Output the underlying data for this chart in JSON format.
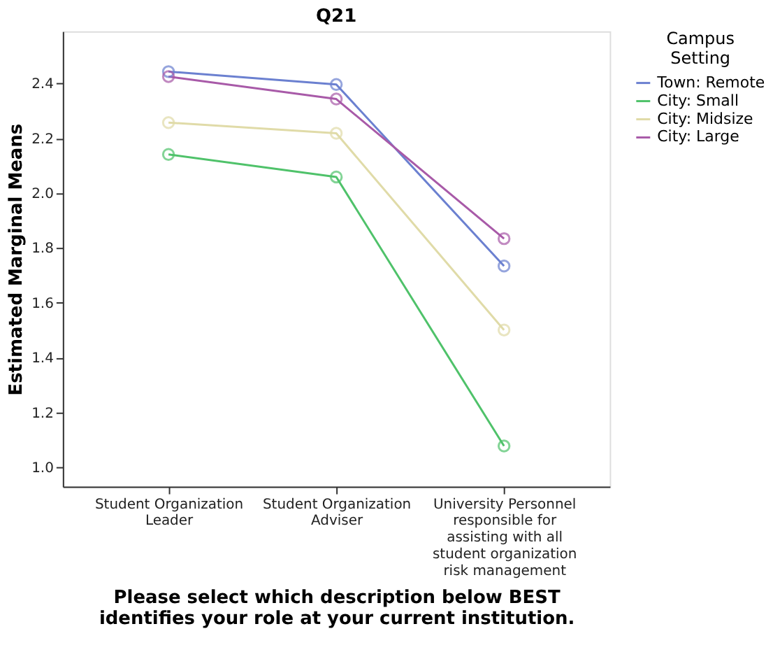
{
  "chart_data": {
    "type": "line",
    "title": "Q21",
    "xlabel": "Please select which description below BEST\nidentifies your role at your current institution.",
    "ylabel": "Estimated Marginal Means",
    "legend_title": "Campus\nSetting",
    "categories": [
      "Student Organization\nLeader",
      "Student Organization\nAdviser",
      "University Personnel\nresponsible for\nassisting with all\nstudent organization\nrisk management"
    ],
    "series": [
      {
        "name": "Town: Remote",
        "color": "#6b80d0",
        "values": [
          2.443,
          2.396,
          1.734
        ]
      },
      {
        "name": "City: Small",
        "color": "#4fc26a",
        "values": [
          2.141,
          2.059,
          1.078
        ]
      },
      {
        "name": "City: Midsize",
        "color": "#e0dba8",
        "values": [
          2.257,
          2.218,
          1.501
        ]
      },
      {
        "name": "City: Large",
        "color": "#a85aa8",
        "values": [
          2.425,
          2.343,
          1.834
        ]
      }
    ],
    "ylim": [
      0.93,
      2.59
    ],
    "yticks": [
      {
        "value": 1,
        "label": "1.0"
      },
      1.2,
      1.4,
      1.6,
      1.8,
      {
        "value": 2,
        "label": "2.0"
      },
      2.2,
      2.4
    ],
    "grid": false,
    "legend": "top right",
    "marker": "circle",
    "line_style": "solid"
  }
}
